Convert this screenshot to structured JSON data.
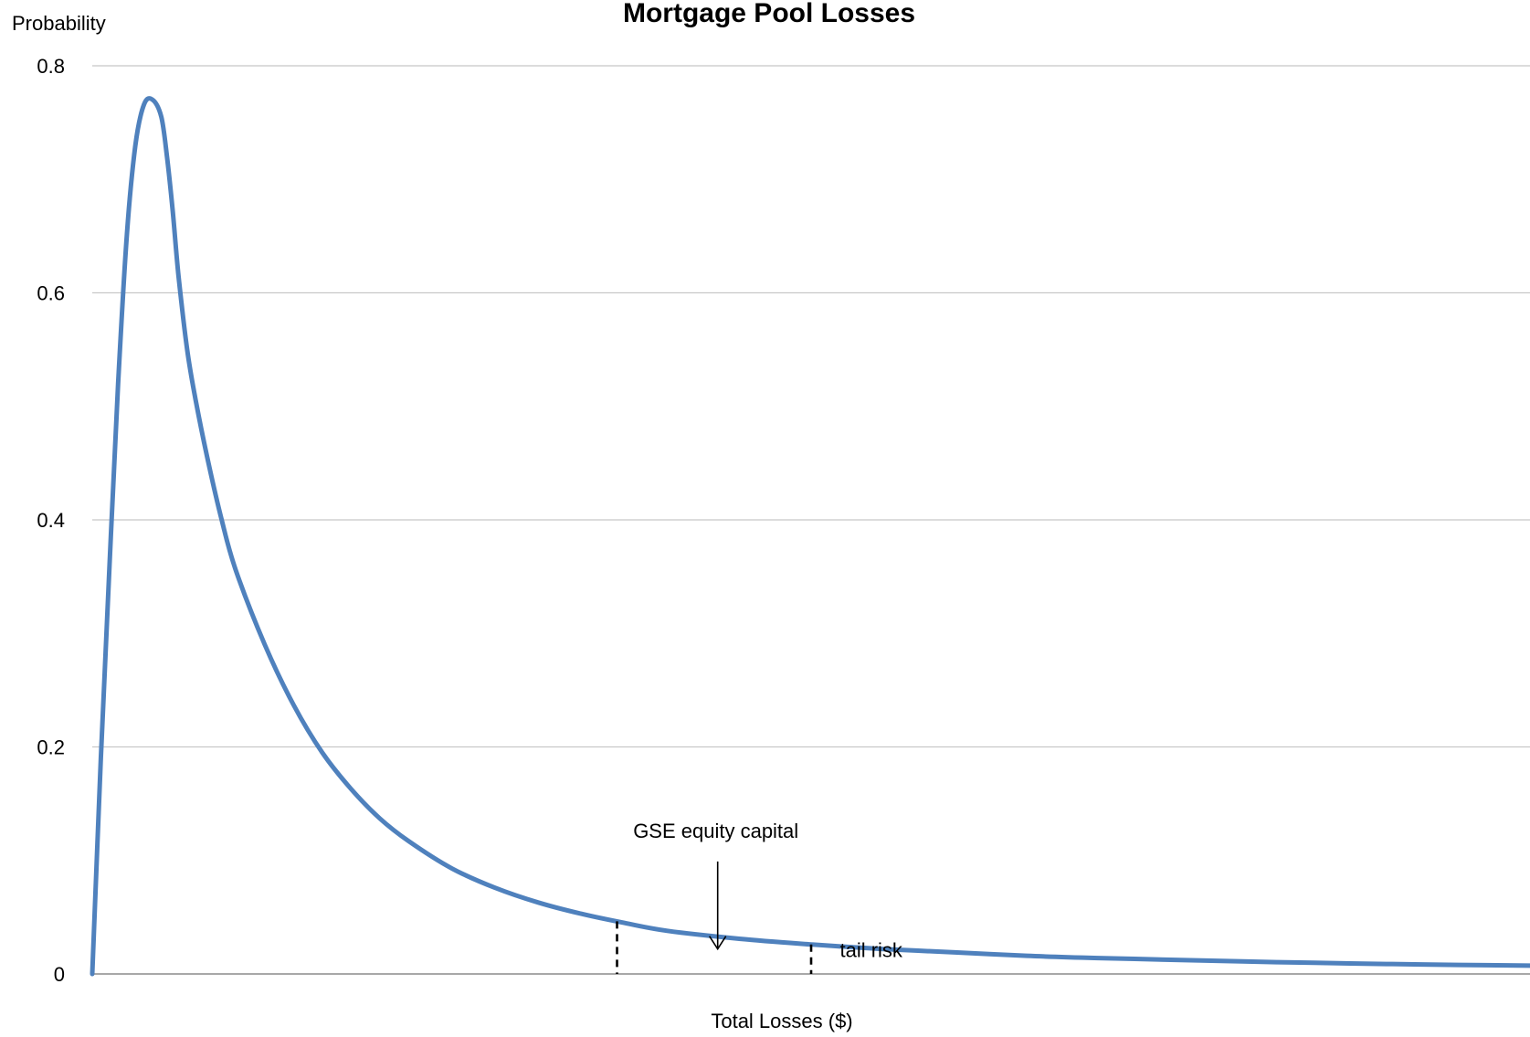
{
  "chart_data": {
    "type": "line",
    "title": "Mortgage Pool Losses",
    "ylabel": "Probability",
    "xlabel": "Total Losses ($)",
    "ylim": [
      0,
      0.8
    ],
    "y_ticks": [
      "0",
      "0.2",
      "0.4",
      "0.6",
      "0.8"
    ],
    "x_ticks": [],
    "grid": true,
    "legend": "none",
    "x_unit_note": "unlabeled x axis; x expressed as fraction of axis length",
    "series": [
      {
        "color": "#4f81bd",
        "x": [
          0.0,
          0.006,
          0.012,
          0.018,
          0.024,
          0.03,
          0.036,
          0.042,
          0.048,
          0.052,
          0.056,
          0.06,
          0.066,
          0.072,
          0.08,
          0.09,
          0.1,
          0.12,
          0.14,
          0.16,
          0.18,
          0.2,
          0.22,
          0.25,
          0.28,
          0.31,
          0.34,
          0.37,
          0.4,
          0.45,
          0.5,
          0.55,
          0.6,
          0.65,
          0.7,
          0.75,
          0.8,
          0.85,
          0.9,
          0.95,
          1.0
        ],
        "y": [
          0.0,
          0.19,
          0.36,
          0.52,
          0.65,
          0.73,
          0.766,
          0.77,
          0.755,
          0.72,
          0.672,
          0.615,
          0.55,
          0.505,
          0.455,
          0.4,
          0.355,
          0.29,
          0.237,
          0.195,
          0.163,
          0.137,
          0.117,
          0.093,
          0.076,
          0.063,
          0.053,
          0.045,
          0.038,
          0.031,
          0.026,
          0.022,
          0.019,
          0.016,
          0.014,
          0.0125,
          0.011,
          0.0098,
          0.0088,
          0.008,
          0.0073
        ]
      }
    ],
    "markers": [
      {
        "x": 0.365,
        "style": "dashed"
      },
      {
        "x": 0.5,
        "style": "dashed"
      }
    ],
    "annotations": [
      {
        "text": "GSE equity capital",
        "x": 0.435,
        "y": 0.12,
        "arrow_to_y": 0.022
      },
      {
        "text": "tail risk",
        "x": 0.52,
        "y": 0.015
      }
    ]
  }
}
